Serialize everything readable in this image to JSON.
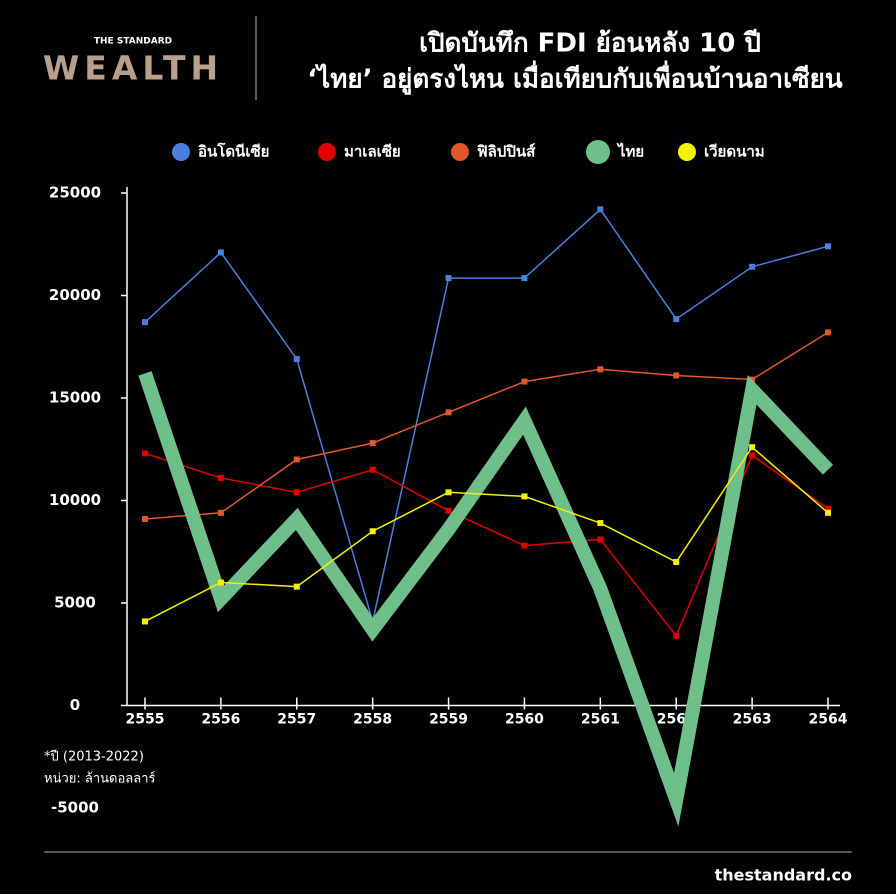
{
  "chart_data": {
    "type": "line",
    "brand_top": "THE STANDARD",
    "brand": "WEALTH",
    "title": "เปิดบันทึก FDI ย้อนหลัง 10 ปี",
    "subtitle": "‘ไทย’ อยู่ตรงไหน เมื่อเทียบกับเพื่อนบ้านอาเซียน",
    "categories": [
      "2555",
      "2556",
      "2557",
      "2558",
      "2559",
      "2560",
      "2561",
      "2562",
      "2563",
      "2564"
    ],
    "series": [
      {
        "name": "อินโดนีเซีย",
        "color": "#4a7fe0",
        "width": 1.5,
        "values": [
          18700,
          22100,
          16900,
          4100,
          20850,
          20850,
          24200,
          18850,
          21400,
          22400
        ]
      },
      {
        "name": "มาเลเซีย",
        "color": "#e00000",
        "width": 1.5,
        "values": [
          12300,
          11100,
          10400,
          11500,
          9500,
          7800,
          8100,
          3400,
          12200,
          9600
        ]
      },
      {
        "name": "ฟิลิปปินส์",
        "color": "#e0582a",
        "width": 1.5,
        "values": [
          9100,
          9400,
          12000,
          12800,
          14300,
          15800,
          16400,
          16100,
          15900,
          18200
        ]
      },
      {
        "name": "ไทย",
        "color": "#6fbf8a",
        "width": 14,
        "values": [
          16200,
          5200,
          9100,
          3700,
          8600,
          13900,
          5700,
          -4600,
          15400,
          11500
        ]
      },
      {
        "name": "เวียดนาม",
        "color": "#f2f200",
        "width": 1.5,
        "values": [
          4100,
          6000,
          5800,
          8500,
          10400,
          10200,
          8900,
          7000,
          12600,
          9400
        ]
      }
    ],
    "ylim": [
      -5000,
      25000
    ],
    "yticks": [
      -5000,
      0,
      5000,
      10000,
      15000,
      20000,
      25000
    ],
    "notes": [
      "*ปี (2013-2022)",
      "หน่วย: ล้านดอลลาร์"
    ],
    "source": "thestandard.co"
  }
}
